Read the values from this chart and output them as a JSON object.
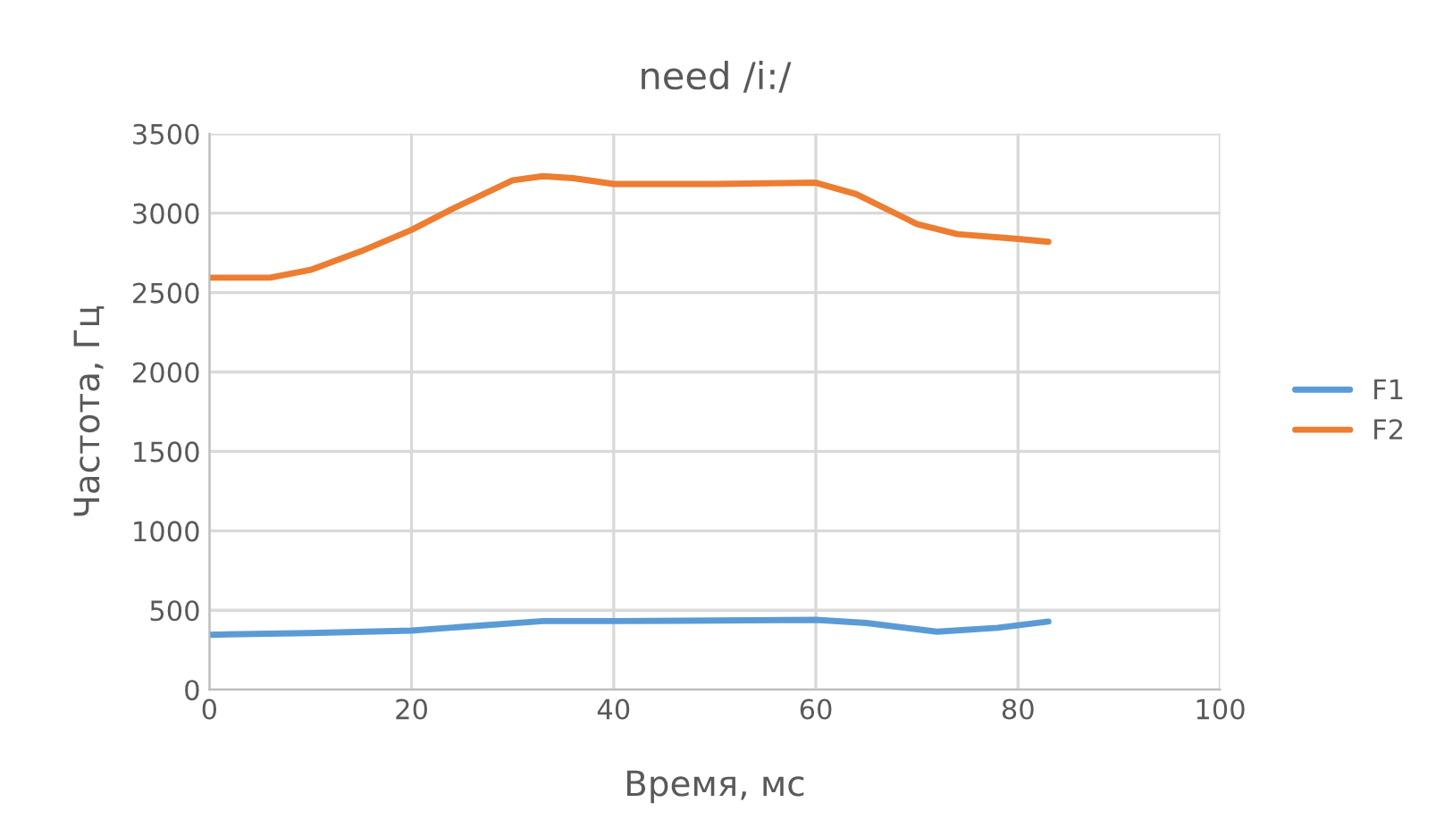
{
  "chart_data": {
    "type": "line",
    "title": "need /i:/",
    "xlabel": "Время, мс",
    "ylabel": "Частота, Гц",
    "xlim": [
      0,
      100
    ],
    "xticks": [
      0,
      20,
      40,
      60,
      80,
      100
    ],
    "ylim": [
      0,
      3500
    ],
    "yticks": [
      0,
      500,
      1000,
      1500,
      2000,
      2500,
      3000,
      3500
    ],
    "grid": true,
    "legend": "right",
    "marker": "none",
    "line_style": "solid",
    "series": [
      {
        "name": "F1",
        "color": "#5b9bd5",
        "x": [
          0,
          10,
          20,
          27,
          33,
          40,
          50,
          60,
          65,
          72,
          78,
          83
        ],
        "values": [
          346,
          357,
          372,
          405,
          432,
          432,
          435,
          440,
          420,
          365,
          390,
          429
        ]
      },
      {
        "name": "F2",
        "color": "#ed7d31",
        "x": [
          0,
          6,
          10,
          15,
          20,
          24,
          30,
          33,
          36,
          40,
          50,
          60,
          64,
          70,
          74,
          80,
          83
        ],
        "values": [
          2594,
          2594,
          2643,
          2760,
          2895,
          3026,
          3207,
          3233,
          3220,
          3184,
          3184,
          3192,
          3120,
          2932,
          2868,
          2838,
          2820
        ]
      }
    ]
  }
}
